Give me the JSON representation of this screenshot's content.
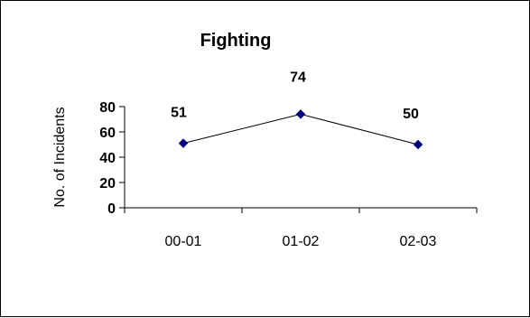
{
  "chart_data": {
    "type": "line",
    "title": "Fighting",
    "xlabel": "",
    "ylabel": "No. of Incidents",
    "categories": [
      "00-01",
      "01-02",
      "02-03"
    ],
    "series": [
      {
        "values": [
          51,
          74,
          50
        ]
      }
    ],
    "ylim": [
      0,
      80
    ],
    "yticks": [
      0,
      20,
      40,
      60,
      80
    ],
    "grid": false,
    "legend": "none",
    "colors": {
      "line": "#000000",
      "marker": "#000080"
    }
  }
}
